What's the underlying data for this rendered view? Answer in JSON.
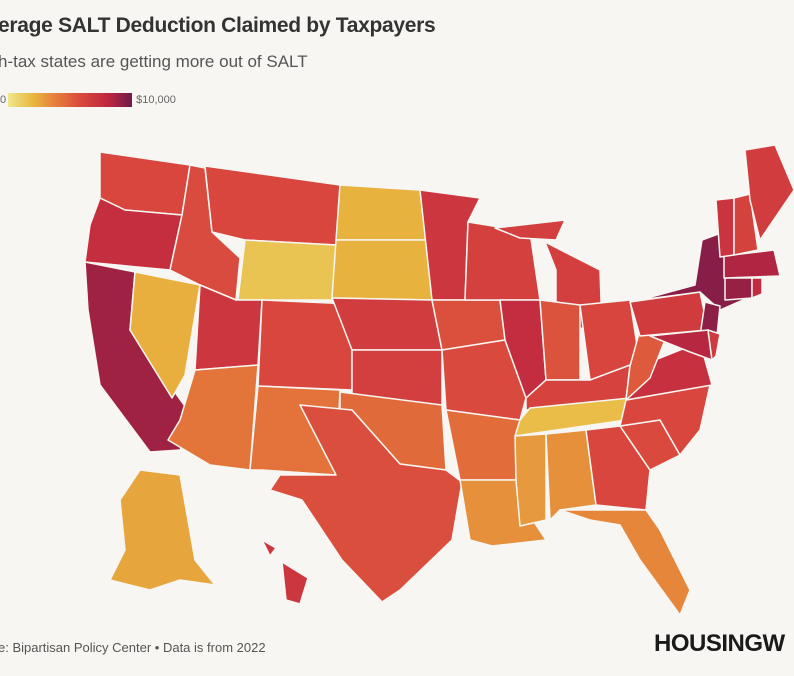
{
  "title": "erage SALT Deduction Claimed by Taxpayers",
  "subtitle": "h-tax states are getting more out of SALT",
  "legend": {
    "min_label": "0",
    "max_label": "$10,000",
    "min": 0,
    "max": 10000
  },
  "source": "e: Bipartisan Policy Center • Data is from 2022",
  "logo": "HOUSINGW",
  "colors": {
    "background": "#f7f6f2",
    "scale": [
      "#f0e68c",
      "#e8b840",
      "#e57a3a",
      "#d8463e",
      "#c0283f",
      "#6e1a4a"
    ]
  },
  "map_data": {
    "type": "choropleth",
    "metric": "Average SALT deduction (USD)",
    "values": {
      "WA": 6000,
      "OR": 7600,
      "CA": 8800,
      "NV": 2300,
      "ID": 5800,
      "MT": 6000,
      "WY": 1500,
      "UT": 7000,
      "AZ": 4200,
      "CO": 6000,
      "NM": 4300,
      "ND": 2200,
      "SD": 2200,
      "NE": 6600,
      "KS": 6500,
      "OK": 4600,
      "TX": 5700,
      "MN": 7000,
      "IA": 5600,
      "MO": 5900,
      "AR": 4500,
      "LA": 3300,
      "WI": 6400,
      "IL": 7700,
      "MI": 6500,
      "IN": 5500,
      "OH": 6100,
      "KY": 6200,
      "TN": 1800,
      "MS": 3000,
      "AL": 3300,
      "GA": 6000,
      "FL": 3600,
      "SC": 5900,
      "NC": 6000,
      "VA": 7500,
      "WV": 5200,
      "PA": 6700,
      "NY": 9400,
      "NJ": 9300,
      "MD": 8200,
      "DE": 6800,
      "CT": 9000,
      "MA": 8400,
      "RI": 7800,
      "VT": 7200,
      "NH": 6300,
      "ME": 6600,
      "AK": 2600,
      "HI": 7000
    }
  }
}
